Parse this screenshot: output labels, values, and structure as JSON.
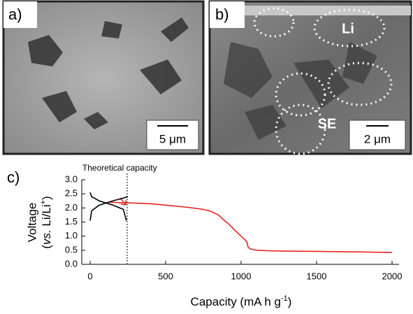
{
  "panels": [
    {
      "label": "a)",
      "scale": "5 μm"
    },
    {
      "label": "b)",
      "scale": "2 μm",
      "annotations": [
        "Li",
        "SE"
      ]
    }
  ],
  "chart_label": "c)",
  "chart_data": {
    "type": "line",
    "xlabel": [
      "Capacity (mA h g",
      "-1",
      ")"
    ],
    "ylabel": [
      "Voltage",
      "(",
      "vs.",
      " Li/Li",
      "+",
      ")"
    ],
    "xlim": [
      0,
      2000
    ],
    "xticks": [
      0,
      500,
      1000,
      1500,
      2000
    ],
    "ylim": [
      0,
      3
    ],
    "yticks": [
      {
        "value": 0,
        "label": "0.0"
      },
      0.5,
      {
        "value": 1,
        "label": "1.0"
      },
      1.5,
      {
        "value": 2,
        "label": "2.0"
      },
      2.5,
      {
        "value": 3,
        "label": "3.0"
      }
    ],
    "annotation": {
      "text": "Theoretical capacity",
      "x": 245
    },
    "series": [
      {
        "color": "#e8251f",
        "x": [
          130,
          250,
          400,
          500,
          650,
          750,
          800,
          850,
          880,
          920,
          960,
          1000,
          1020,
          1040,
          1045,
          1060,
          1100,
          1200,
          1300,
          1500,
          1600,
          1800,
          2000
        ],
        "values": [
          2.2,
          2.18,
          2.15,
          2.1,
          2.02,
          1.95,
          1.88,
          1.75,
          1.6,
          1.42,
          1.2,
          1.0,
          0.9,
          0.78,
          0.62,
          0.55,
          0.5,
          0.48,
          0.47,
          0.46,
          0.45,
          0.44,
          0.42
        ]
      },
      {
        "color": "#000000",
        "x": [
          0,
          10,
          60,
          150,
          220,
          240
        ],
        "values": [
          2.55,
          2.4,
          2.25,
          2.1,
          1.95,
          1.55
        ]
      },
      {
        "color": "#000000",
        "x": [
          0,
          10,
          60,
          150,
          220,
          250
        ],
        "values": [
          1.55,
          1.9,
          2.1,
          2.25,
          2.35,
          2.4
        ]
      }
    ]
  }
}
